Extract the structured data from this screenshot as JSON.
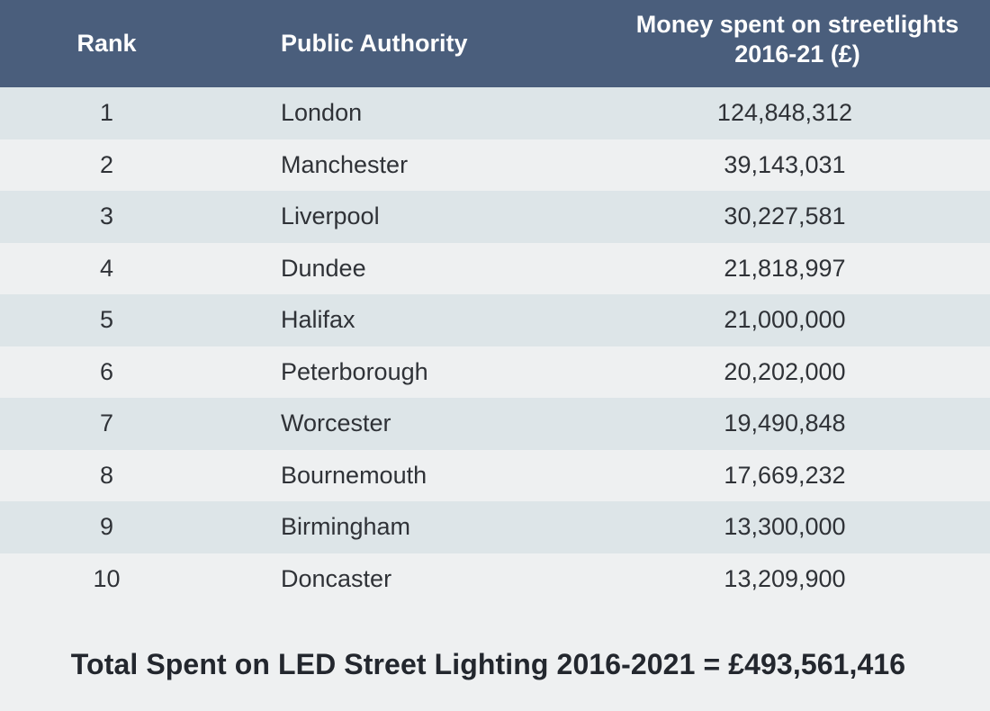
{
  "table": {
    "headers": {
      "rank": "Rank",
      "authority": "Public Authority",
      "money_line1": "Money spent on streetlights",
      "money_line2": "2016-21 (£)"
    },
    "rows": [
      {
        "rank": "1",
        "authority": "London",
        "money": "124,848,312"
      },
      {
        "rank": "2",
        "authority": "Manchester",
        "money": "39,143,031"
      },
      {
        "rank": "3",
        "authority": "Liverpool",
        "money": "30,227,581"
      },
      {
        "rank": "4",
        "authority": "Dundee",
        "money": "21,818,997"
      },
      {
        "rank": "5",
        "authority": "Halifax",
        "money": "21,000,000"
      },
      {
        "rank": "6",
        "authority": "Peterborough",
        "money": "20,202,000"
      },
      {
        "rank": "7",
        "authority": "Worcester",
        "money": "19,490,848"
      },
      {
        "rank": "8",
        "authority": "Bournemouth",
        "money": "17,669,232"
      },
      {
        "rank": "9",
        "authority": "Birmingham",
        "money": "13,300,000"
      },
      {
        "rank": "10",
        "authority": "Doncaster",
        "money": "13,209,900"
      }
    ]
  },
  "total": {
    "text": "Total Spent on LED Street Lighting 2016-2021 = £493,561,416"
  },
  "colors": {
    "header_bg": "#4a5e7c",
    "row_odd_bg": "#dde5e8",
    "row_even_bg": "#eef0f1"
  }
}
